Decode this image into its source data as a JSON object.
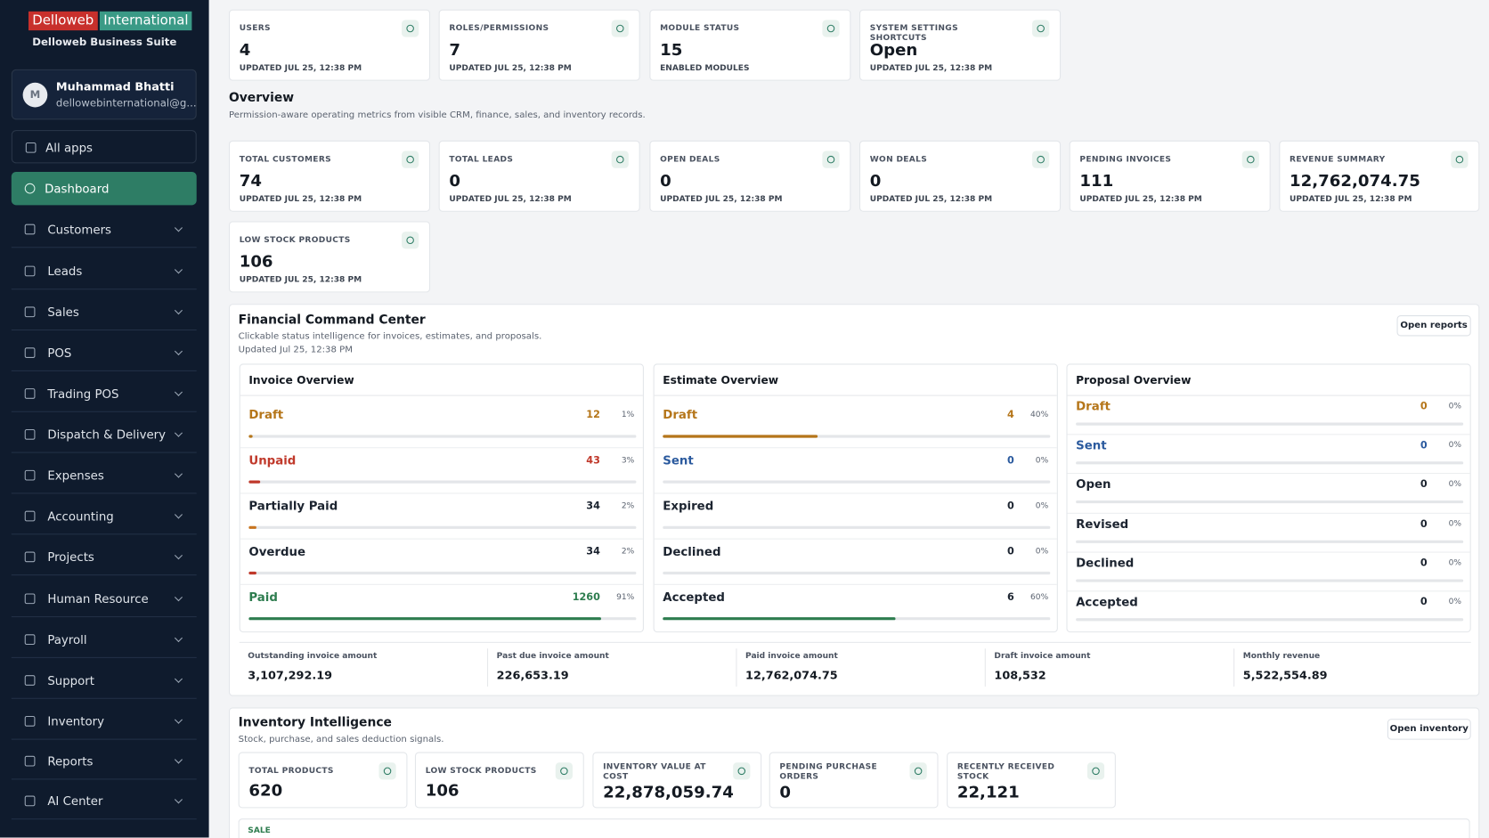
{
  "brand": {
    "name1": "Delloweb",
    "name2": "International",
    "suite": "Delloweb Business Suite"
  },
  "user": {
    "initial": "M",
    "name": "Muhammad Bhatti",
    "email": "dellowebinternational@g..."
  },
  "nav": [
    "All apps",
    "Dashboard",
    "Customers",
    "Leads",
    "Sales",
    "POS",
    "Trading POS",
    "Dispatch & Delivery",
    "Expenses",
    "Accounting",
    "Projects",
    "Human Resource",
    "Payroll",
    "Support",
    "Inventory",
    "Reports",
    "AI Center"
  ],
  "nav_active": 1,
  "top_cards": [
    {
      "label": "USERS",
      "value": "4",
      "sub": "UPDATED JUL 25, 12:38 PM"
    },
    {
      "label": "ROLES/PERMISSIONS",
      "value": "7",
      "sub": "UPDATED JUL 25, 12:38 PM"
    },
    {
      "label": "MODULE STATUS",
      "value": "15",
      "sub": "ENABLED MODULES"
    },
    {
      "label": "SYSTEM SETTINGS SHORTCUTS",
      "value": "Open",
      "sub": "UPDATED JUL 25, 12:38 PM"
    }
  ],
  "overview": {
    "title": "Overview",
    "subtitle": "Permission-aware operating metrics from visible CRM, finance, sales, and inventory records.",
    "cards": [
      {
        "label": "TOTAL CUSTOMERS",
        "value": "74",
        "sub": "UPDATED JUL 25, 12:38 PM"
      },
      {
        "label": "TOTAL LEADS",
        "value": "0",
        "sub": "UPDATED JUL 25, 12:38 PM"
      },
      {
        "label": "OPEN DEALS",
        "value": "0",
        "sub": "UPDATED JUL 25, 12:38 PM"
      },
      {
        "label": "WON DEALS",
        "value": "0",
        "sub": "UPDATED JUL 25, 12:38 PM"
      },
      {
        "label": "PENDING INVOICES",
        "value": "111",
        "sub": "UPDATED JUL 25, 12:38 PM"
      },
      {
        "label": "REVENUE SUMMARY",
        "value": "12,762,074.75",
        "sub": "UPDATED JUL 25, 12:38 PM"
      },
      {
        "label": "LOW STOCK PRODUCTS",
        "value": "106",
        "sub": "UPDATED JUL 25, 12:38 PM"
      }
    ]
  },
  "financial": {
    "title": "Financial Command Center",
    "subtitle": "Clickable status intelligence for invoices, estimates, and proposals.",
    "updated": "Updated Jul 25, 12:38 PM",
    "button": "Open reports",
    "panels": [
      {
        "title": "Invoice Overview",
        "rows": [
          {
            "label": "Draft",
            "count": 12,
            "pct": {
              "value": 1,
              "label": "1%"
            },
            "color": "#b5761a"
          },
          {
            "label": "Unpaid",
            "count": 43,
            "pct": {
              "value": 3,
              "label": "3%"
            },
            "color": "#c0392b"
          },
          {
            "label": "Partially Paid",
            "count": 34,
            "pct": {
              "value": 2,
              "label": "2%"
            },
            "color": "#1c2430",
            "bar": "#c8741e"
          },
          {
            "label": "Overdue",
            "count": 34,
            "pct": {
              "value": 2,
              "label": "2%"
            },
            "color": "#1c2430",
            "bar": "#c0392b"
          },
          {
            "label": "Paid",
            "count": 1260,
            "pct": {
              "value": 91,
              "label": "91%"
            },
            "color": "#2e7d4f"
          }
        ]
      },
      {
        "title": "Estimate Overview",
        "rows": [
          {
            "label": "Draft",
            "count": 4,
            "pct": {
              "value": 40,
              "label": "40%"
            },
            "color": "#b5761a"
          },
          {
            "label": "Sent",
            "count": 0,
            "pct": {
              "value": 0,
              "label": "0%"
            },
            "color": "#2b5a9e"
          },
          {
            "label": "Expired",
            "count": 0,
            "pct": {
              "value": 0,
              "label": "0%"
            },
            "color": "#1c2430"
          },
          {
            "label": "Declined",
            "count": 0,
            "pct": {
              "value": 0,
              "label": "0%"
            },
            "color": "#1c2430"
          },
          {
            "label": "Accepted",
            "count": 6,
            "pct": {
              "value": 60,
              "label": "60%"
            },
            "color": "#1c2430",
            "bar": "#2e7d4f"
          }
        ]
      },
      {
        "title": "Proposal Overview",
        "rows": [
          {
            "label": "Draft",
            "count": 0,
            "pct": {
              "value": 0,
              "label": "0%"
            },
            "color": "#b5761a"
          },
          {
            "label": "Sent",
            "count": 0,
            "pct": {
              "value": 0,
              "label": "0%"
            },
            "color": "#2b5a9e"
          },
          {
            "label": "Open",
            "count": 0,
            "pct": {
              "value": 0,
              "label": "0%"
            },
            "color": "#1c2430"
          },
          {
            "label": "Revised",
            "count": 0,
            "pct": {
              "value": 0,
              "label": "0%"
            },
            "color": "#1c2430"
          },
          {
            "label": "Declined",
            "count": 0,
            "pct": {
              "value": 0,
              "label": "0%"
            },
            "color": "#1c2430"
          },
          {
            "label": "Accepted",
            "count": 0,
            "pct": {
              "value": 0,
              "label": "0%"
            },
            "color": "#1c2430"
          }
        ]
      }
    ],
    "summary": [
      {
        "label": "Outstanding invoice amount",
        "value": "3,107,292.19"
      },
      {
        "label": "Past due invoice amount",
        "value": "226,653.19"
      },
      {
        "label": "Paid invoice amount",
        "value": "12,762,074.75"
      },
      {
        "label": "Draft invoice amount",
        "value": "108,532"
      },
      {
        "label": "Monthly revenue",
        "value": "5,522,554.89"
      }
    ]
  },
  "inventory": {
    "title": "Inventory Intelligence",
    "subtitle": "Stock, purchase, and sales deduction signals.",
    "button": "Open inventory",
    "cards": [
      {
        "label": "TOTAL PRODUCTS",
        "value": "620"
      },
      {
        "label": "LOW STOCK PRODUCTS",
        "value": "106"
      },
      {
        "label": "INVENTORY VALUE AT COST",
        "value": "22,878,059.74"
      },
      {
        "label": "PENDING PURCHASE ORDERS",
        "value": "0"
      },
      {
        "label": "RECENTLY RECEIVED STOCK",
        "value": "22,121"
      }
    ],
    "section": "SALE"
  }
}
